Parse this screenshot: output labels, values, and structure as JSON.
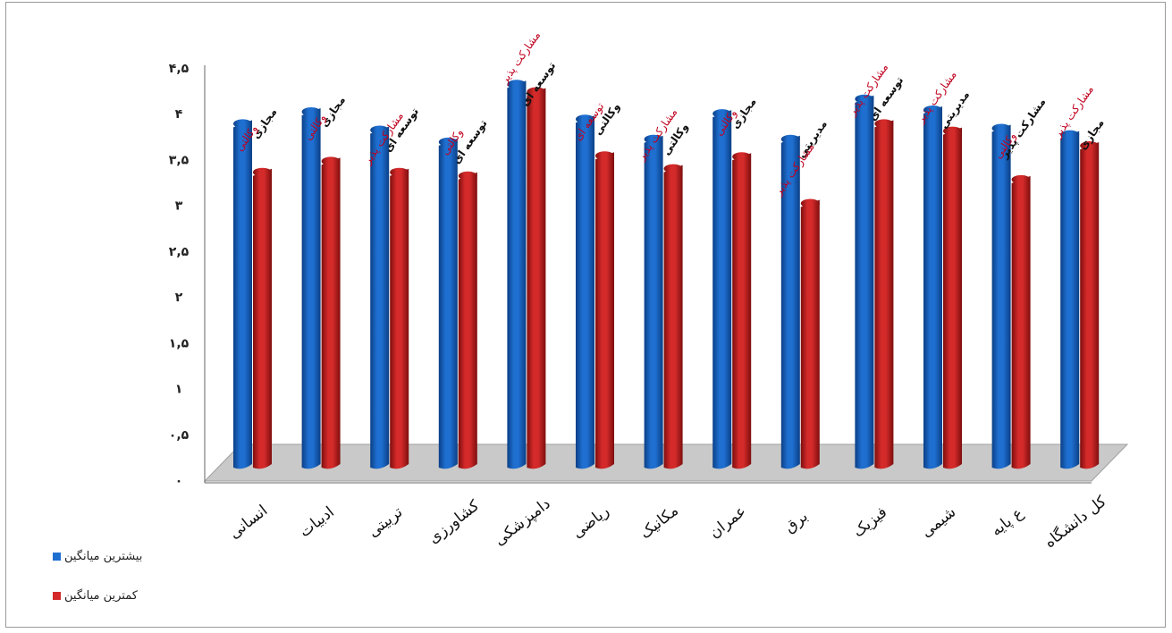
{
  "chart_data": {
    "type": "bar",
    "categories": [
      "انسانی",
      "ادبیات",
      "تربیتی",
      "کشاورزی",
      "دامپزشکی",
      "ریاضی",
      "مکانیک",
      "عمران",
      "برق",
      "فیزیک",
      "شیمی",
      "ع پایه",
      "کل دانشگاه"
    ],
    "series": [
      {
        "name": "بیشترین میانگین",
        "values": [
          3.85,
          3.98,
          3.78,
          3.65,
          4.28,
          3.9,
          3.68,
          3.96,
          3.68,
          4.12,
          4.0,
          3.8,
          3.73
        ],
        "labels": [
          "مجازی",
          "مجازی",
          "توسعه ای",
          "توسعه ای",
          "توسعه ای",
          "وکالتی",
          "وکالتی",
          "مجازی",
          "مدیریتی",
          "توسعه ای",
          "مدیریتی",
          "مشارکت پذیر",
          "مجازی"
        ]
      },
      {
        "name": "کمترین میانگین",
        "values": [
          3.32,
          3.44,
          3.32,
          3.28,
          4.2,
          3.5,
          3.36,
          3.49,
          2.98,
          3.85,
          3.77,
          3.24,
          3.61
        ],
        "labels": [
          "وکالتی",
          "وکالتی",
          "مشارکت پذیر",
          "وکالتی",
          "مشارکت پذیر",
          "توسعه ای",
          "مشارکت پذیر",
          "وکالتی",
          "مشارکت پذیر",
          "مشارکت پذیر",
          "مشارکت پذیر",
          "وکالتی",
          "مشارکت پذیر"
        ]
      }
    ],
    "y_tick_labels": [
      "۰",
      "۰,۵",
      "۱",
      "۱,۵",
      "۲",
      "۲,۵",
      "۳",
      "۳,۵",
      "۴",
      "۴,۵"
    ],
    "ylim": [
      0,
      4.5
    ],
    "grid": false,
    "legend_position": "bottom-left",
    "colors": {
      "blue": "#1e6fd0",
      "blue_dark": "#0b3f86",
      "red": "#d42a2a",
      "red_dark": "#7e0e0e",
      "label_red": "#c0001e",
      "label_black": "#111111",
      "floor": "#c9c9c9"
    }
  }
}
